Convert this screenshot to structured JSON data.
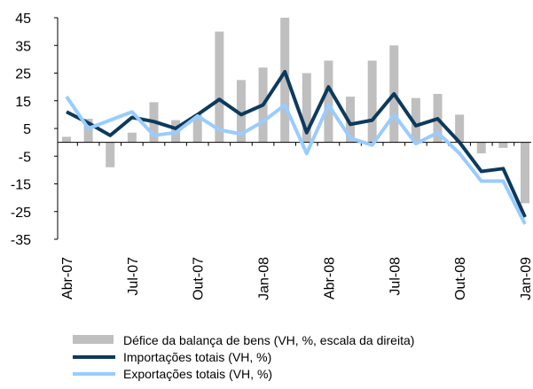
{
  "chart_data": {
    "type": "bar_line",
    "categories": [
      "Abr-07",
      null,
      null,
      "Jul-07",
      null,
      null,
      "Out-07",
      null,
      null,
      "Jan-08",
      null,
      null,
      "Abr-08",
      null,
      null,
      "Jul-08",
      null,
      null,
      "Out-08",
      null,
      null,
      "Jan-09"
    ],
    "series": [
      {
        "name": "Défice da balança de bens (VH, %, escala da direita)",
        "type": "bar",
        "color": "#bfbfbf",
        "values": [
          2,
          8.5,
          -9,
          3.5,
          14.5,
          8,
          10,
          40,
          22.5,
          27,
          45,
          25,
          29.5,
          16.5,
          29.5,
          35,
          16,
          17.5,
          10,
          -4,
          -2,
          -22
        ]
      },
      {
        "name": "Importações totais (VH, %)",
        "type": "line",
        "color": "#0d3a5c",
        "values": [
          11,
          7,
          2.5,
          9,
          7.5,
          5,
          10,
          15.5,
          10,
          13.5,
          25.5,
          3.5,
          20,
          6.5,
          8,
          17.5,
          6,
          8.5,
          0,
          -10.5,
          -9.5,
          -27
        ]
      },
      {
        "name": "Exportações totais (VH, %)",
        "type": "line",
        "color": "#99ccff",
        "values": [
          16.5,
          5,
          8,
          11,
          2.5,
          3.5,
          9.5,
          4.5,
          3,
          7.5,
          13.5,
          -4,
          13.5,
          1.5,
          -1,
          10,
          -0.5,
          3.5,
          -4,
          -14,
          -14,
          -29.5
        ]
      }
    ],
    "ylim": [
      -35,
      45
    ],
    "yticks": [
      -35,
      -25,
      -15,
      -5,
      5,
      15,
      25,
      35,
      45
    ]
  }
}
